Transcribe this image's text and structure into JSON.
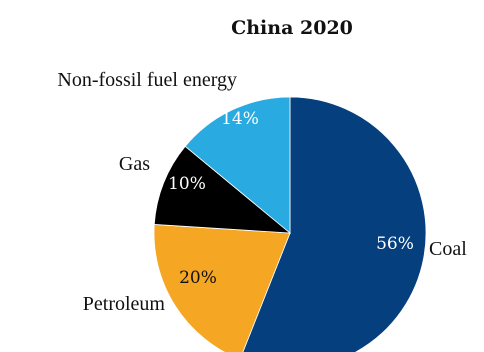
{
  "chart_data": {
    "type": "pie",
    "title": "China 2020",
    "slices": [
      {
        "label": "Coal",
        "value": 56,
        "value_label": "56%",
        "color": "#063f7d",
        "text_color": "#ffffff"
      },
      {
        "label": "Petroleum",
        "value": 20,
        "value_label": "20%",
        "color": "#f5a623",
        "text_color": "#111111"
      },
      {
        "label": "Gas",
        "value": 10,
        "value_label": "10%",
        "color": "#000000",
        "text_color": "#ffffff"
      },
      {
        "label": "Non-fossil fuel energy",
        "value": 14,
        "value_label": "14%",
        "color": "#29abe2",
        "text_color": "#ffffff"
      }
    ],
    "start_angle_deg": 0,
    "direction": "clockwise",
    "legend": "none"
  }
}
